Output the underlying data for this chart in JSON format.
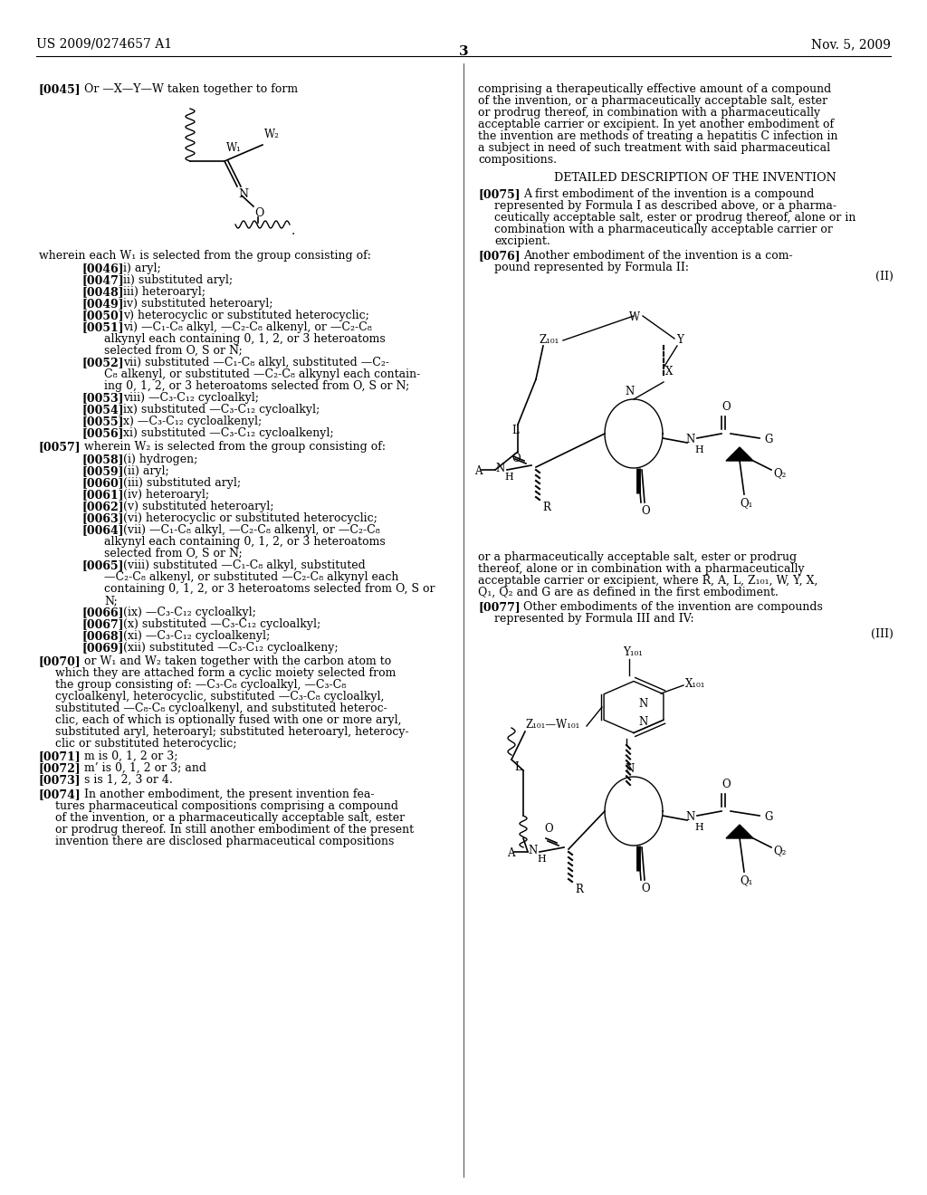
{
  "bg_color": "#ffffff",
  "header_left": "US 2009/0274657 A1",
  "header_right": "Nov. 5, 2009",
  "page_number": "3"
}
